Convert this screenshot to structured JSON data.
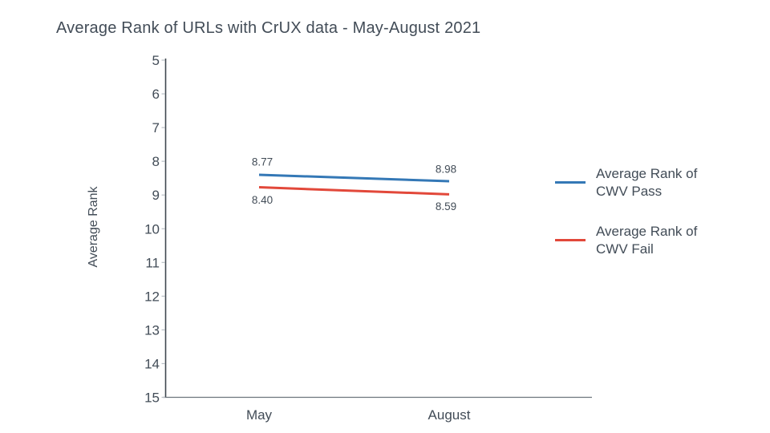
{
  "title": "Average Rank of URLs with CrUX data - May-August 2021",
  "y_axis_title": "Average Rank",
  "colors": {
    "pass_line": "#3478b6",
    "fail_line": "#e2483a",
    "text": "#424c57",
    "y_axis_line": "#3f474f",
    "x_axis_line": "#6d757d",
    "tick_mark": "#b9bfc5"
  },
  "legend": {
    "position": "right",
    "items": [
      {
        "label": "Average Rank of CWV Pass",
        "color": "#3478b6"
      },
      {
        "label": "Average Rank of CWV Fail",
        "color": "#e2483a"
      }
    ]
  },
  "chart_data": {
    "type": "line",
    "title": "Average Rank of URLs with CrUX data - May-August 2021",
    "categories": [
      "May",
      "August"
    ],
    "series": [
      {
        "name": "Average Rank of CWV Pass",
        "color": "#3478b6",
        "values": [
          8.4,
          8.59
        ],
        "value_labels": [
          "8.40",
          "8.59"
        ],
        "label_side": "below"
      },
      {
        "name": "Average Rank of CWV Fail",
        "color": "#e2483a",
        "values": [
          8.77,
          8.98
        ],
        "value_labels": [
          "8.77",
          "8.98"
        ],
        "label_side": "above"
      }
    ],
    "xlabel": "",
    "ylabel": "Average Rank",
    "y_ticks": [
      5,
      6,
      7,
      8,
      9,
      10,
      11,
      12,
      13,
      14,
      15
    ],
    "ylim": [
      15,
      5
    ],
    "y_axis_inverted": true,
    "grid": "off",
    "legend_position": "right",
    "value_labels_shown": true
  }
}
